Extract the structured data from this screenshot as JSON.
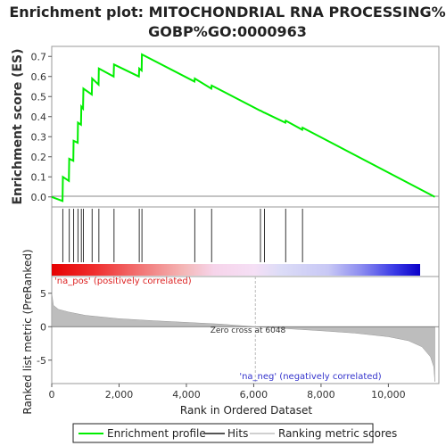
{
  "title_line1": "Enrichment plot: MITOCHONDRIAL RNA PROCESSING%",
  "title_line2": "GOBP%GO:0000963",
  "legend": {
    "profile": "Enrichment profile",
    "hits": "Hits",
    "ranking": "Ranking metric scores"
  },
  "colors": {
    "profile": "#00ee00",
    "hits": "#333333",
    "metric_fill": "#bdbdbd",
    "pos_text": "#dd2222",
    "neg_text": "#3333cc"
  },
  "chart_data": {
    "type": "line",
    "xlabel": "Rank in Ordered Dataset",
    "ylabel_top": "Enrichment score (ES)",
    "ylabel_bottom": "Ranked list metric (PreRanked)",
    "xlim": [
      0,
      11500
    ],
    "ylim_top": [
      -0.05,
      0.75
    ],
    "ylim_bottom": [
      -8.5,
      7.5
    ],
    "x_ticks": [
      0,
      2000,
      4000,
      6000,
      8000,
      10000
    ],
    "x_tick_labels": [
      "0",
      "2,000",
      "4,000",
      "6,000",
      "8,000",
      "10,000"
    ],
    "y_ticks_top": [
      0.0,
      0.1,
      0.2,
      0.3,
      0.4,
      0.5,
      0.6,
      0.7
    ],
    "y_tick_labels_top": [
      "0.0",
      "0.1",
      "0.2",
      "0.3",
      "0.4",
      "0.5",
      "0.6",
      "0.7"
    ],
    "y_ticks_bottom": [
      5,
      0,
      -5
    ],
    "y_tick_labels_bottom": [
      "5",
      "0",
      "-5"
    ],
    "annotations": {
      "positive": "'na_pos' (positively correlated)",
      "negative": "'na_neg' (negatively correlated)",
      "zero_cross": "Zero cross at 6048"
    },
    "zero_cross": 6048,
    "total_genes": 11380,
    "hits": [
      330,
      520,
      650,
      780,
      880,
      940,
      1200,
      1400,
      1850,
      2600,
      2680,
      4250,
      4750,
      6200,
      6320,
      6950,
      7450
    ],
    "enrichment_profile": [
      [
        0,
        0.0
      ],
      [
        320,
        -0.02
      ],
      [
        330,
        0.1
      ],
      [
        510,
        0.08
      ],
      [
        520,
        0.19
      ],
      [
        640,
        0.18
      ],
      [
        650,
        0.28
      ],
      [
        770,
        0.27
      ],
      [
        780,
        0.37
      ],
      [
        870,
        0.36
      ],
      [
        880,
        0.45
      ],
      [
        930,
        0.44
      ],
      [
        940,
        0.54
      ],
      [
        1190,
        0.51
      ],
      [
        1200,
        0.59
      ],
      [
        1390,
        0.56
      ],
      [
        1400,
        0.64
      ],
      [
        1840,
        0.6
      ],
      [
        1850,
        0.66
      ],
      [
        2590,
        0.6
      ],
      [
        2600,
        0.64
      ],
      [
        2670,
        0.63
      ],
      [
        2680,
        0.71
      ],
      [
        4240,
        0.575
      ],
      [
        4250,
        0.59
      ],
      [
        4740,
        0.54
      ],
      [
        4750,
        0.555
      ],
      [
        6190,
        0.43
      ],
      [
        6200,
        0.43
      ],
      [
        6310,
        0.42
      ],
      [
        6320,
        0.42
      ],
      [
        6940,
        0.37
      ],
      [
        6950,
        0.38
      ],
      [
        7440,
        0.335
      ],
      [
        7450,
        0.345
      ],
      [
        11380,
        0.0
      ]
    ],
    "ranking_metric": [
      [
        0,
        5.0
      ],
      [
        50,
        3.2
      ],
      [
        200,
        2.6
      ],
      [
        500,
        2.2
      ],
      [
        1000,
        1.7
      ],
      [
        2000,
        1.2
      ],
      [
        3000,
        0.9
      ],
      [
        4000,
        0.65
      ],
      [
        5000,
        0.4
      ],
      [
        6048,
        0.0
      ],
      [
        7000,
        -0.3
      ],
      [
        8000,
        -0.6
      ],
      [
        9000,
        -0.95
      ],
      [
        10000,
        -1.5
      ],
      [
        10600,
        -2.1
      ],
      [
        11000,
        -3.0
      ],
      [
        11250,
        -4.5
      ],
      [
        11350,
        -6.0
      ],
      [
        11380,
        -8.2
      ]
    ]
  }
}
